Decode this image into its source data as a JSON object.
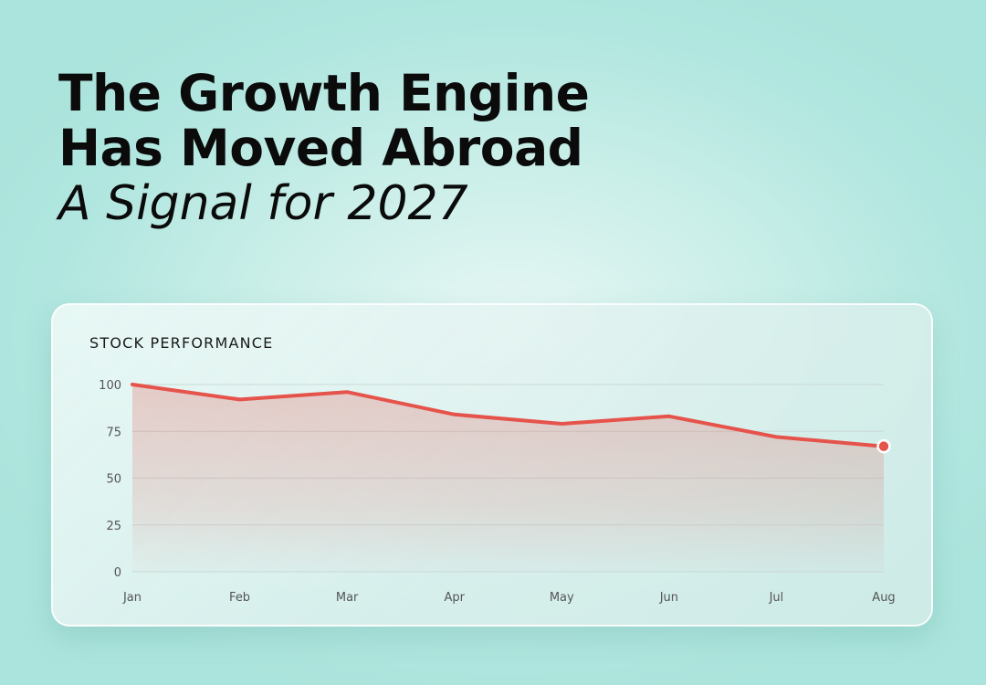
{
  "headline": {
    "line1": "The Growth Engine",
    "line2": "Has Moved Abroad",
    "subtitle": "A Signal for 2027"
  },
  "colors": {
    "line": "#e5534b",
    "fill": "#e5534b",
    "grid": "#c9d9d6",
    "text": "#0b0b0b"
  },
  "chart_data": {
    "type": "area",
    "title": "STOCK PERFORMANCE",
    "categories": [
      "Jan",
      "Feb",
      "Mar",
      "Apr",
      "May",
      "Jun",
      "Jul",
      "Aug"
    ],
    "series": [
      {
        "values": [
          100,
          92,
          96,
          84,
          79,
          83,
          72,
          67
        ]
      }
    ],
    "yticks": [
      0,
      25,
      50,
      75,
      100
    ],
    "ylim": [
      0,
      100
    ],
    "grid": true,
    "legend": "none",
    "end_marker": true
  }
}
